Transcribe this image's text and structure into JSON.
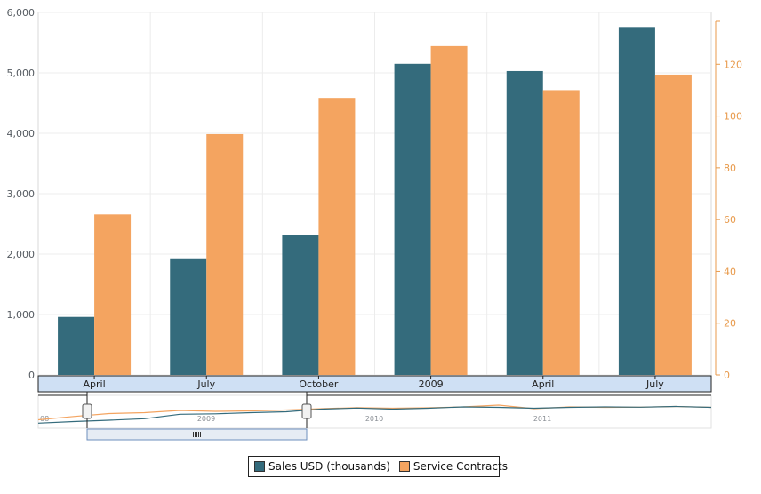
{
  "chart_data": {
    "type": "bar",
    "categories": [
      "April",
      "July",
      "October",
      "2009",
      "April",
      "July"
    ],
    "series": [
      {
        "name": "Sales USD (thousands)",
        "axis": "left",
        "color": "#346b7c",
        "values": [
          960,
          1930,
          2320,
          5150,
          5030,
          5760
        ]
      },
      {
        "name": "Service Contracts",
        "axis": "right",
        "color": "#f4a460",
        "values": [
          62,
          93,
          107,
          127,
          110,
          116
        ]
      }
    ],
    "y_left": {
      "ylim": [
        0,
        6000
      ],
      "ticks": [
        "0",
        "1,000",
        "2,000",
        "3,000",
        "4,000",
        "5,000",
        "6,000"
      ]
    },
    "y_right": {
      "ylim": [
        0,
        140
      ],
      "ticks": [
        "0",
        "20",
        "40",
        "60",
        "80",
        "100",
        "120"
      ]
    },
    "grid": true,
    "legend": "bottom-center",
    "navigator": {
      "labels": [
        "08",
        "2009",
        "2010",
        "2011"
      ],
      "sales_trend": [
        0.15,
        0.22,
        0.28,
        0.35,
        0.55,
        0.57,
        0.62,
        0.66,
        0.78,
        0.83,
        0.78,
        0.82,
        0.88,
        0.86,
        0.82,
        0.86,
        0.88,
        0.87,
        0.9,
        0.86
      ],
      "contracts_trend": [
        0.3,
        0.45,
        0.58,
        0.62,
        0.72,
        0.68,
        0.7,
        0.74,
        0.8,
        0.85,
        0.82,
        0.84,
        0.88,
        0.96,
        0.8,
        0.88,
        0.86,
        0.87,
        0.9,
        0.86
      ],
      "grip_icon": "grip-lines-icon"
    }
  }
}
